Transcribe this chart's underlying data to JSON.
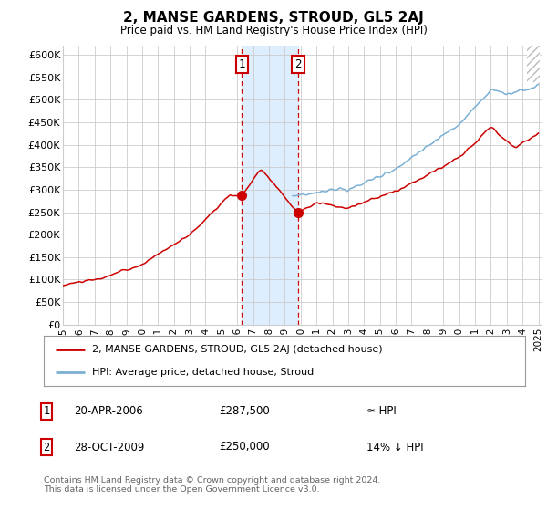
{
  "title": "2, MANSE GARDENS, STROUD, GL5 2AJ",
  "subtitle": "Price paid vs. HM Land Registry's House Price Index (HPI)",
  "ylim": [
    0,
    620000
  ],
  "yticks": [
    0,
    50000,
    100000,
    150000,
    200000,
    250000,
    300000,
    350000,
    400000,
    450000,
    500000,
    550000,
    600000
  ],
  "sale1_price": 287500,
  "sale2_price": 250000,
  "legend_label_red": "2, MANSE GARDENS, STROUD, GL5 2AJ (detached house)",
  "legend_label_blue": "HPI: Average price, detached house, Stroud",
  "table_row1": [
    "1",
    "20-APR-2006",
    "£287,500",
    "≈ HPI"
  ],
  "table_row2": [
    "2",
    "28-OCT-2009",
    "£250,000",
    "14% ↓ HPI"
  ],
  "footer": "Contains HM Land Registry data © Crown copyright and database right 2024.\nThis data is licensed under the Open Government Licence v3.0.",
  "red_color": "#cc0000",
  "blue_color": "#7ab0d4",
  "bg_color": "#ffffff",
  "grid_color": "#cccccc",
  "shade_color": "#ddeeff",
  "sale1_x_year": 2006.3,
  "sale2_x_year": 2009.83,
  "xmin": 1995,
  "xmax": 2025
}
